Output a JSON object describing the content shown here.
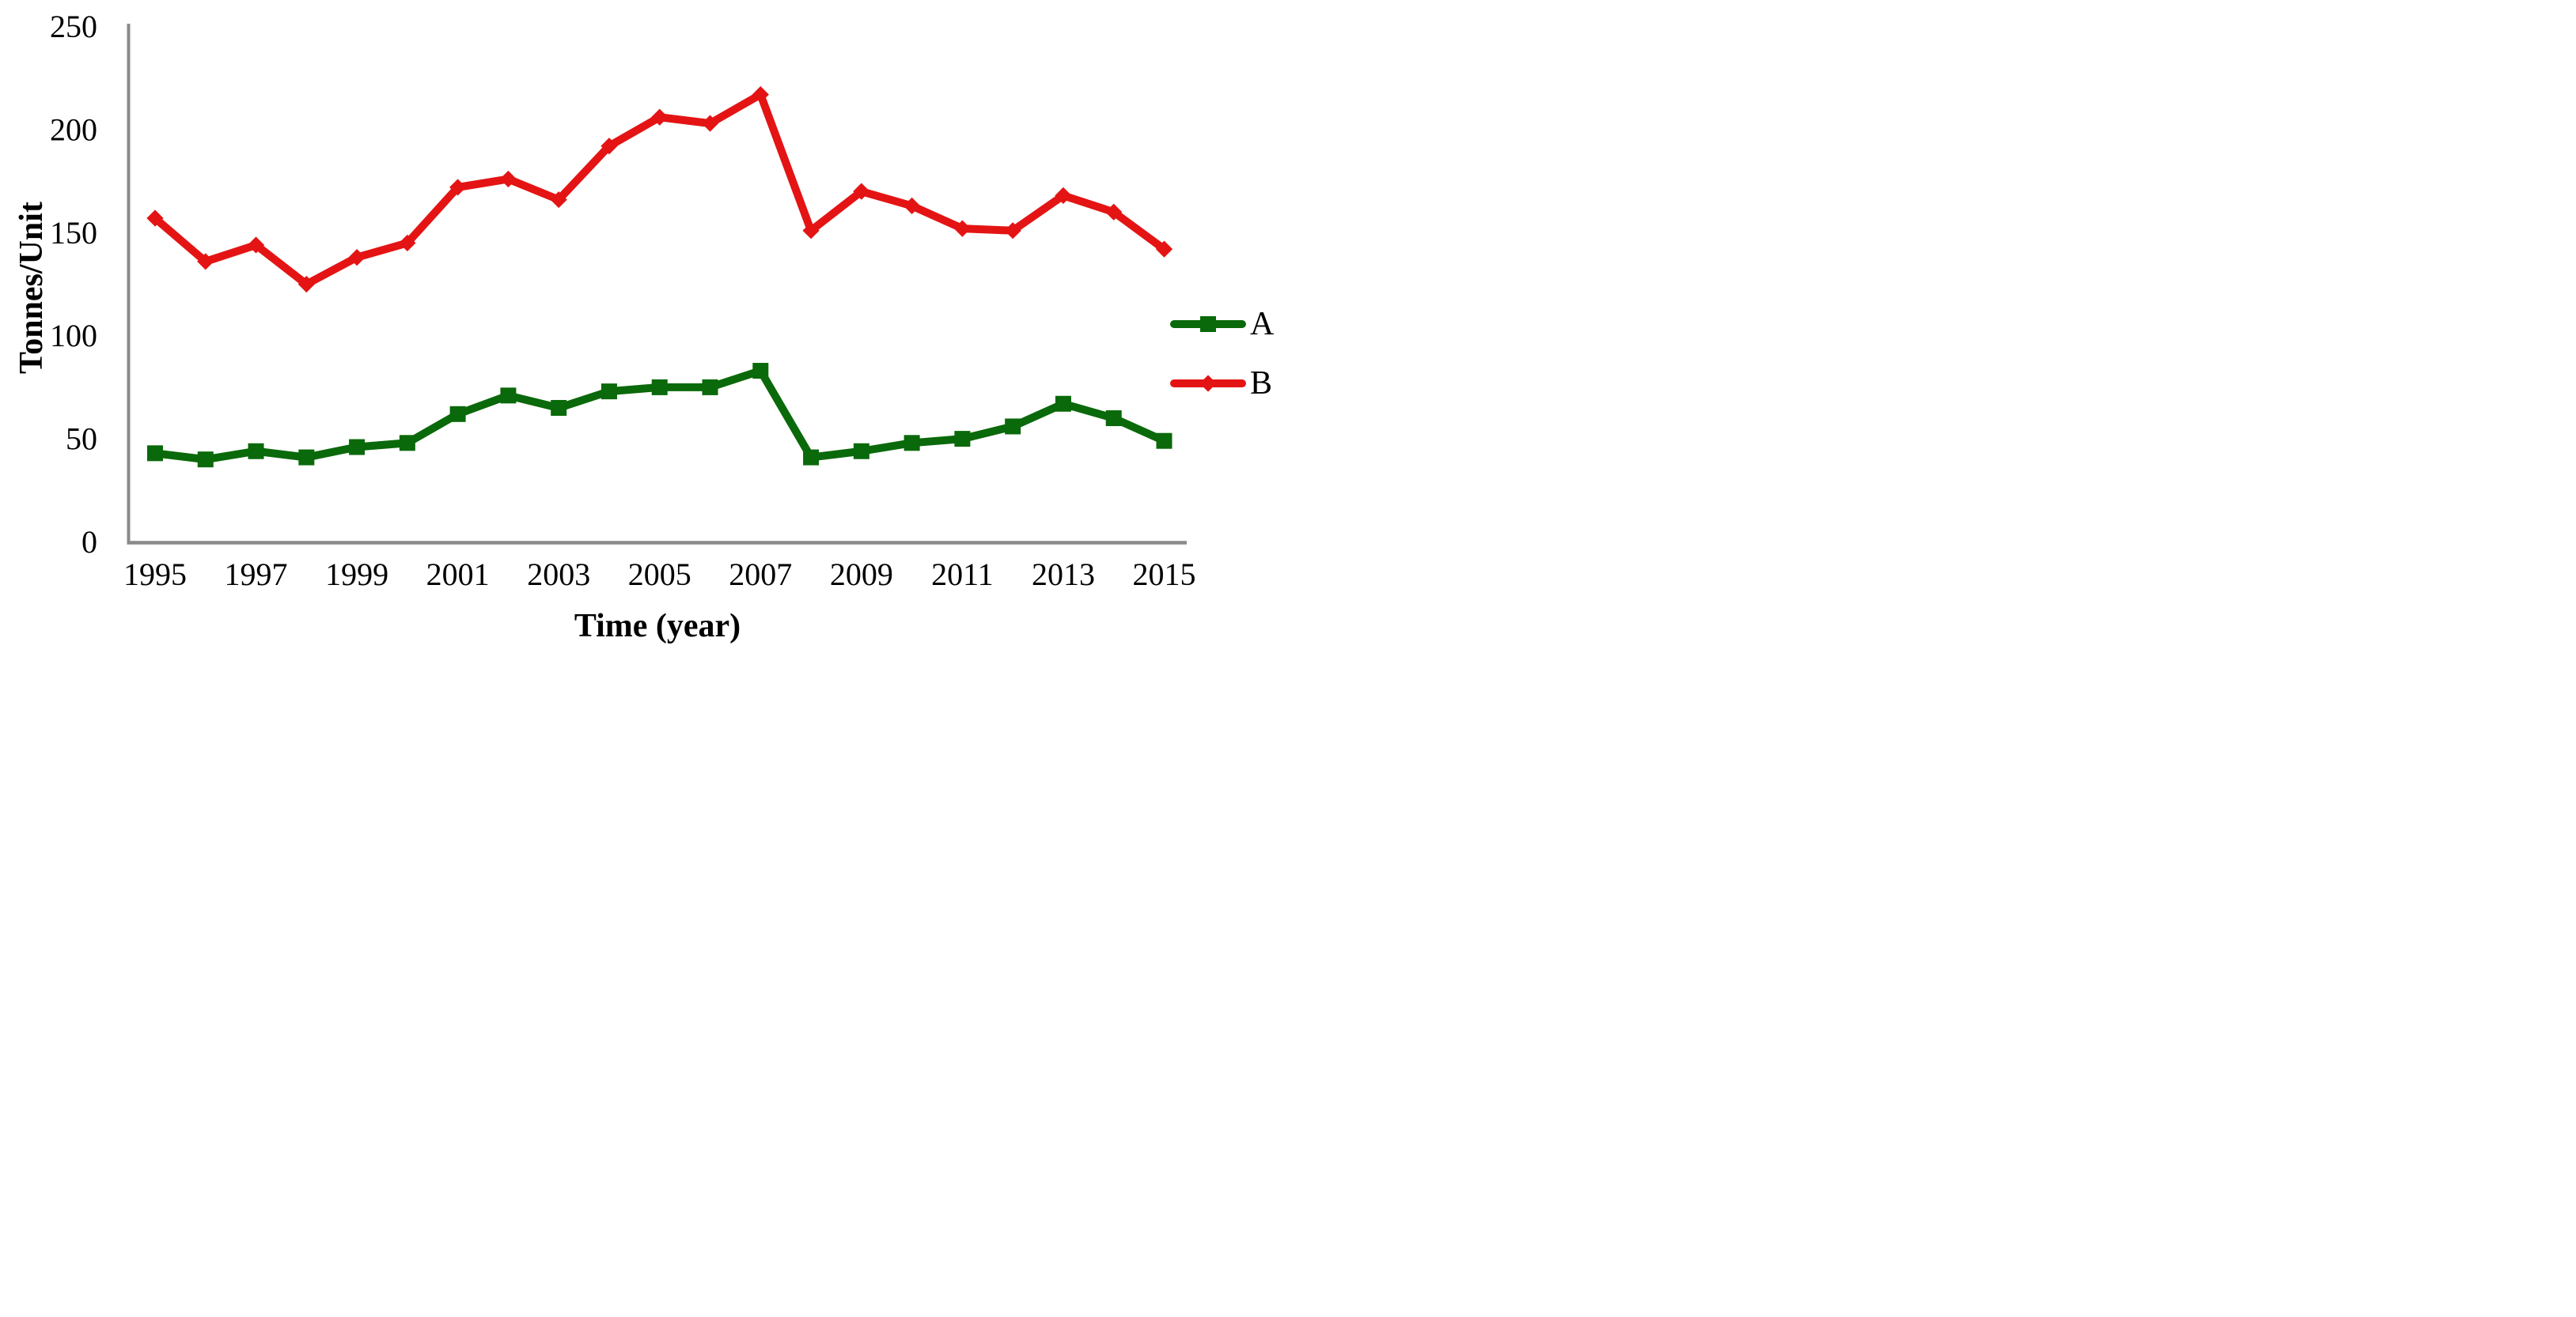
{
  "figure": {
    "kind": "line chart",
    "background": "#ffffff"
  },
  "axes": {
    "y_title": "Tonnes/Unit",
    "x_title": "Time (year)",
    "axis_color": "#8a8a8a",
    "text_color": "#000000"
  },
  "legend": {
    "position": "right",
    "items": [
      {
        "label": "A",
        "marker": "square",
        "color": "#0a690a"
      },
      {
        "label": "B",
        "marker": "diamond",
        "color": "#e41414"
      }
    ]
  },
  "chart_data": {
    "type": "line",
    "title": "",
    "xlabel": "Time (year)",
    "ylabel": "Tonnes/Unit",
    "x": [
      1995,
      1996,
      1997,
      1998,
      1999,
      2000,
      2001,
      2002,
      2003,
      2004,
      2005,
      2006,
      2007,
      2008,
      2009,
      2010,
      2011,
      2012,
      2013,
      2014,
      2015
    ],
    "x_tick_labels": [
      1995,
      1997,
      1999,
      2001,
      2003,
      2005,
      2007,
      2009,
      2011,
      2013,
      2015
    ],
    "series": [
      {
        "name": "A",
        "color": "#0a690a",
        "marker": "square",
        "values": [
          43,
          40,
          44,
          41,
          46,
          48,
          62,
          71,
          65,
          73,
          75,
          75,
          83,
          41,
          44,
          48,
          50,
          56,
          67,
          60,
          49
        ]
      },
      {
        "name": "B",
        "color": "#e41414",
        "marker": "diamond",
        "values": [
          157,
          136,
          144,
          125,
          138,
          145,
          172,
          176,
          166,
          192,
          206,
          203,
          217,
          151,
          170,
          163,
          152,
          151,
          168,
          160,
          142
        ]
      }
    ],
    "ylim": [
      0,
      250
    ],
    "y_ticks": [
      0,
      50,
      100,
      150,
      200,
      250
    ],
    "grid": false,
    "legend_position": "right"
  }
}
